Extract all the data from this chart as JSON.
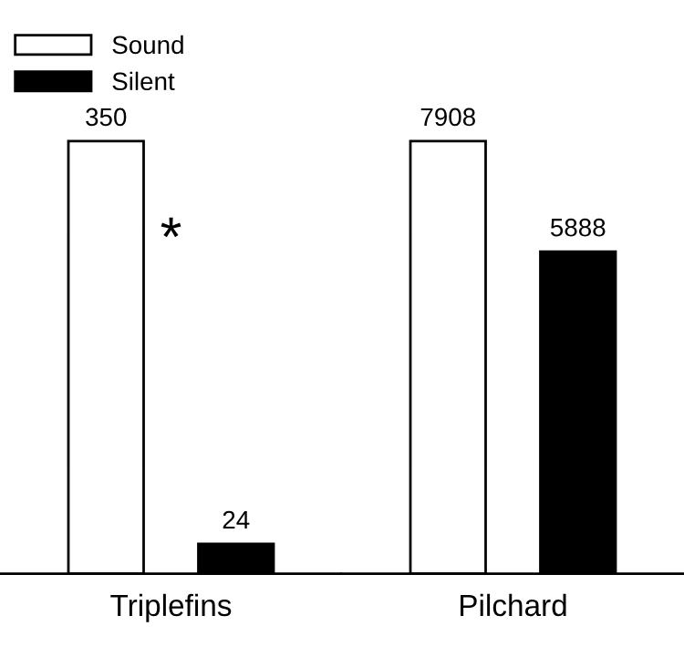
{
  "chart_data": [
    {
      "type": "bar",
      "categories": [
        "Triplefins"
      ],
      "series": [
        {
          "name": "Sound",
          "color": "#ffffff",
          "values": [
            350
          ]
        },
        {
          "name": "Silent",
          "color": "#000000",
          "values": [
            24
          ]
        }
      ],
      "data_labels": true,
      "legend": "top left",
      "tick_labels": "x",
      "annotations": [
        "*"
      ]
    },
    {
      "type": "bar",
      "categories": [
        "Pilchard"
      ],
      "series": [
        {
          "color": "#ffffff",
          "values": [
            7908
          ]
        },
        {
          "color": "#000000",
          "values": [
            5888
          ]
        }
      ],
      "data_labels": true,
      "tick_labels": "x"
    }
  ]
}
